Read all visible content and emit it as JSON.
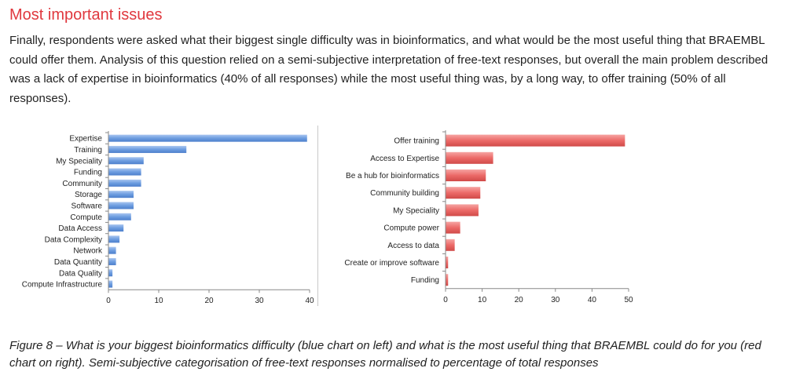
{
  "heading": "Most important issues",
  "paragraph": "Finally, respondents were asked what their biggest single difficulty was in bioinformatics, and what would be the most useful thing that BRAEMBL could offer them. Analysis of this question relied on a semi-subjective interpretation of free-text responses, but overall the main problem described was a lack of expertise in bioinformatics (40% of all responses) while the most useful thing was, by a long way, to offer training (50% of all responses).",
  "caption": "Figure 8 – What is your biggest bioinformatics difficulty (blue chart on left) and what is the most useful thing that BRAEMBL could do for you (red chart on right). Semi-subjective categorisation of free-text responses normalised to percentage of total responses",
  "colors": {
    "heading": "#e0383e",
    "blue_bar": "#6d9de0",
    "red_bar": "#ec6a68"
  },
  "chart_data": [
    {
      "type": "bar",
      "orientation": "horizontal",
      "color": "blue",
      "categories": [
        "Expertise",
        "Training",
        "My Speciality",
        "Funding",
        "Community",
        "Storage",
        "Software",
        "Compute",
        "Data Access",
        "Data Complexity",
        "Network",
        "Data Quantity",
        "Data Quality",
        "Compute Infrastructure"
      ],
      "values": [
        39.5,
        15.5,
        7,
        6.5,
        6.5,
        5,
        5,
        4.5,
        3,
        2.2,
        1.5,
        1.5,
        0.8,
        0.8
      ],
      "xlim": [
        0,
        40
      ],
      "xticks": [
        "0",
        "10",
        "20",
        "30",
        "40"
      ],
      "title": "",
      "xlabel": "",
      "ylabel": ""
    },
    {
      "type": "bar",
      "orientation": "horizontal",
      "color": "red",
      "categories": [
        "Offer training",
        "Access to Expertise",
        "Be a hub for bioinformatics",
        "Community building",
        "My Speciality",
        "Compute power",
        "Access to data",
        "Create or improve software",
        "Funding"
      ],
      "values": [
        49,
        13,
        11,
        9.5,
        9,
        4,
        2.5,
        0.7,
        0.7
      ],
      "xlim": [
        0,
        50
      ],
      "xticks": [
        "0",
        "10",
        "20",
        "30",
        "40",
        "50"
      ],
      "title": "",
      "xlabel": "",
      "ylabel": ""
    }
  ]
}
